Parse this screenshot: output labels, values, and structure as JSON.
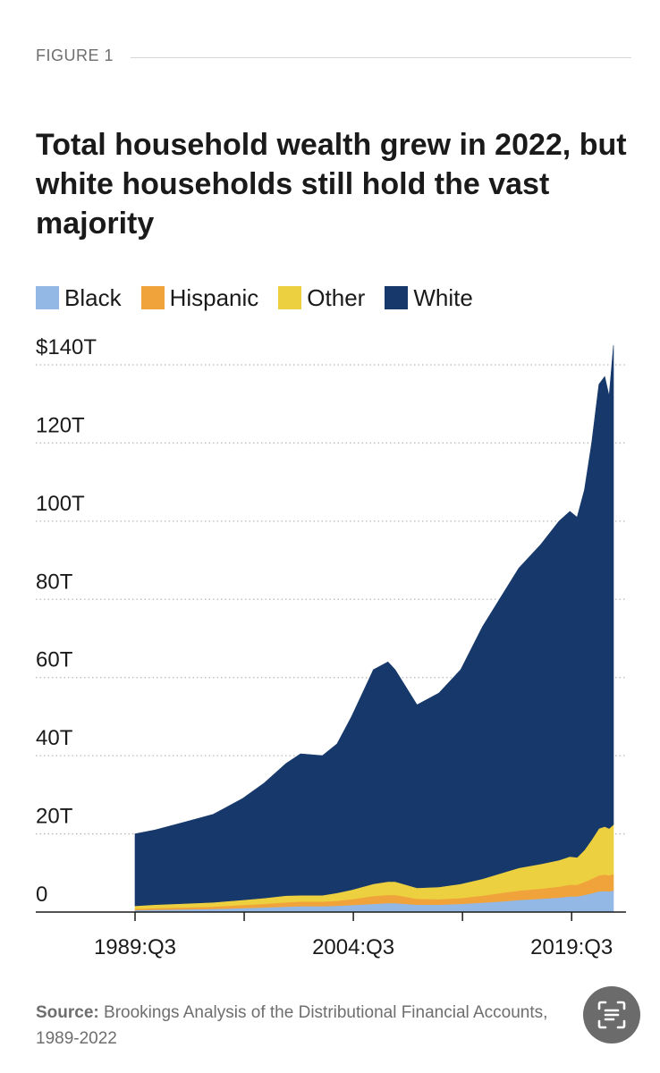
{
  "figure_label": "FIGURE 1",
  "source": {
    "prefix": "Source:",
    "text": "Brookings Analysis of the Distributional Financial Accounts, 1989-2022"
  },
  "scan_button": {
    "icon": "scan-text-icon"
  },
  "chart_data": {
    "type": "area",
    "stacked": true,
    "title": "Total household wealth grew in 2022, but white households still hold the vast majority",
    "xlabel": "",
    "ylabel": "",
    "ylim": [
      0,
      140
    ],
    "yticks": [
      {
        "value": 0,
        "label": "0"
      },
      {
        "value": 20,
        "label": "20T"
      },
      {
        "value": 40,
        "label": "40T"
      },
      {
        "value": 60,
        "label": "60T"
      },
      {
        "value": 80,
        "label": "80T"
      },
      {
        "value": 100,
        "label": "100T"
      },
      {
        "value": 120,
        "label": "120T"
      },
      {
        "value": 140,
        "label": "$140T"
      }
    ],
    "xlim": [
      1989.625,
      2022.5
    ],
    "xticks": [
      {
        "value": 1989.625,
        "label": "1989:Q3"
      },
      {
        "value": 1997.125,
        "label": ""
      },
      {
        "value": 2004.625,
        "label": "2004:Q3"
      },
      {
        "value": 2012.125,
        "label": ""
      },
      {
        "value": 2019.625,
        "label": "2019:Q3"
      }
    ],
    "grid": "horizontal-dotted",
    "legend": "top-left",
    "x": [
      1989.625,
      1991.0,
      1993.0,
      1995.0,
      1997.0,
      1998.5,
      2000.0,
      2001.0,
      2002.5,
      2003.5,
      2004.5,
      2006.0,
      2007.0,
      2007.5,
      2009.0,
      2010.5,
      2012.0,
      2013.5,
      2015.0,
      2016.0,
      2017.5,
      2018.75,
      2019.5,
      2020.0,
      2020.5,
      2021.0,
      2021.5,
      2021.9,
      2022.2,
      2022.5
    ],
    "series": [
      {
        "name": "Black",
        "color": "#93b8e6",
        "values": [
          0.5,
          0.6,
          0.7,
          0.8,
          1.0,
          1.2,
          1.4,
          1.5,
          1.5,
          1.6,
          1.8,
          2.1,
          2.3,
          2.3,
          1.9,
          1.9,
          2.1,
          2.4,
          2.8,
          3.1,
          3.4,
          3.7,
          4.0,
          4.0,
          4.4,
          4.8,
          5.3,
          5.4,
          5.3,
          5.5
        ]
      },
      {
        "name": "Hispanic",
        "color": "#f0a33a",
        "values": [
          0.3,
          0.4,
          0.5,
          0.6,
          0.8,
          0.9,
          1.1,
          1.2,
          1.2,
          1.3,
          1.5,
          2.0,
          2.1,
          2.1,
          1.5,
          1.4,
          1.5,
          1.8,
          2.2,
          2.4,
          2.6,
          2.8,
          3.0,
          3.0,
          3.3,
          3.7,
          4.1,
          4.2,
          4.1,
          4.2
        ]
      },
      {
        "name": "Other",
        "color": "#ecd040",
        "values": [
          0.8,
          0.9,
          1.0,
          1.1,
          1.3,
          1.5,
          1.7,
          1.6,
          1.6,
          2.0,
          2.4,
          3.1,
          3.4,
          3.4,
          2.8,
          3.1,
          3.6,
          4.3,
          5.2,
          5.8,
          6.3,
          6.8,
          7.2,
          7.0,
          8.2,
          10.0,
          12.0,
          12.3,
          12.0,
          12.7
        ]
      },
      {
        "name": "White",
        "color": "#16386b",
        "values": [
          18.4,
          19.1,
          20.8,
          22.5,
          25.9,
          29.4,
          33.8,
          36.2,
          35.7,
          38.1,
          44.3,
          54.8,
          56.2,
          54.2,
          46.8,
          49.6,
          54.8,
          64.5,
          71.8,
          76.7,
          81.7,
          86.7,
          88.3,
          87.0,
          92.1,
          101.5,
          113.6,
          115.1,
          110.6,
          122.6
        ]
      }
    ]
  }
}
